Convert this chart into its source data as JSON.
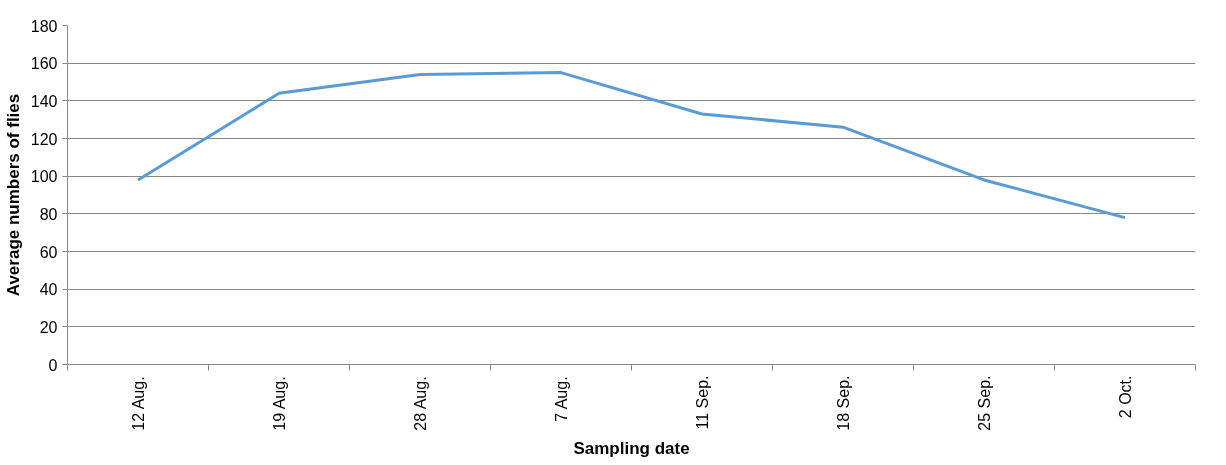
{
  "chart_data": {
    "type": "line",
    "xlabel": "Sampling date",
    "ylabel": "Average numbers of flies",
    "categories": [
      "12 Aug.",
      "19 Aug.",
      "28 Aug.",
      "7 Aug.",
      "11 Sep.",
      "18 Sep.",
      "25 Sep.",
      "2 Oct."
    ],
    "series": [
      {
        "color": "#5b9bd5",
        "values": [
          98,
          144,
          154,
          155,
          133,
          126,
          98,
          78
        ]
      }
    ],
    "ylim": [
      0,
      180
    ],
    "yticks": [
      0,
      20,
      40,
      60,
      80,
      100,
      120,
      140,
      160,
      180
    ],
    "grid": "y",
    "marker": "none",
    "line_style": "solid"
  }
}
